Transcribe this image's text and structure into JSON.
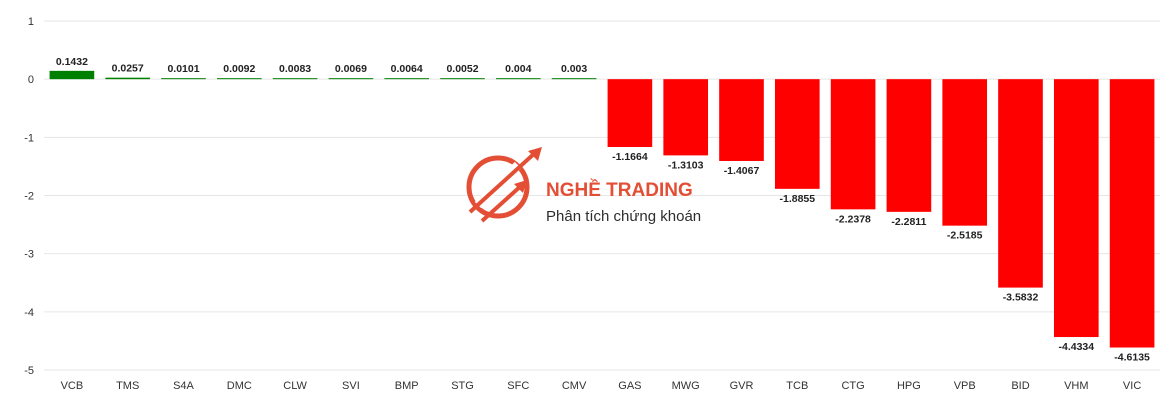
{
  "watermark": {
    "title": "NGHỀ TRADING",
    "subtitle": "Phân tích chứng khoán",
    "icon": "trading-logo-icon",
    "color": "#e2452b"
  },
  "colors": {
    "positive": "#008000",
    "negative": "#ff0000",
    "grid": "#e6e6e6"
  },
  "chart_data": {
    "type": "bar",
    "categories": [
      "VCB",
      "TMS",
      "S4A",
      "DMC",
      "CLW",
      "SVI",
      "BMP",
      "STG",
      "SFC",
      "CMV",
      "GAS",
      "MWG",
      "GVR",
      "TCB",
      "CTG",
      "HPG",
      "VPB",
      "BID",
      "VHM",
      "VIC"
    ],
    "values": [
      0.1432,
      0.0257,
      0.0101,
      0.0092,
      0.0083,
      0.0069,
      0.0064,
      0.0052,
      0.004,
      0.003,
      -1.1664,
      -1.3103,
      -1.4067,
      -1.8855,
      -2.2378,
      -2.2811,
      -2.5185,
      -3.5832,
      -4.4334,
      -4.6135
    ],
    "data_labels": [
      "0.1432",
      "0.0257",
      "0.0101",
      "0.0092",
      "0.0083",
      "0.0069",
      "0.0064",
      "0.0052",
      "0.004",
      "0.003",
      "-1.1664",
      "-1.3103",
      "-1.4067",
      "-1.8855",
      "-2.2378",
      "-2.2811",
      "-2.5185",
      "-3.5832",
      "-4.4334",
      "-4.6135"
    ],
    "ylim": [
      -5,
      1
    ],
    "yticks": [
      1,
      0,
      -1,
      -2,
      -3,
      -4,
      -5
    ],
    "ytick_labels": [
      "1",
      "0",
      "-1",
      "-2",
      "-3",
      "-4",
      "-5"
    ],
    "grid": true,
    "legend": "none",
    "title": "",
    "xlabel": "",
    "ylabel": ""
  }
}
